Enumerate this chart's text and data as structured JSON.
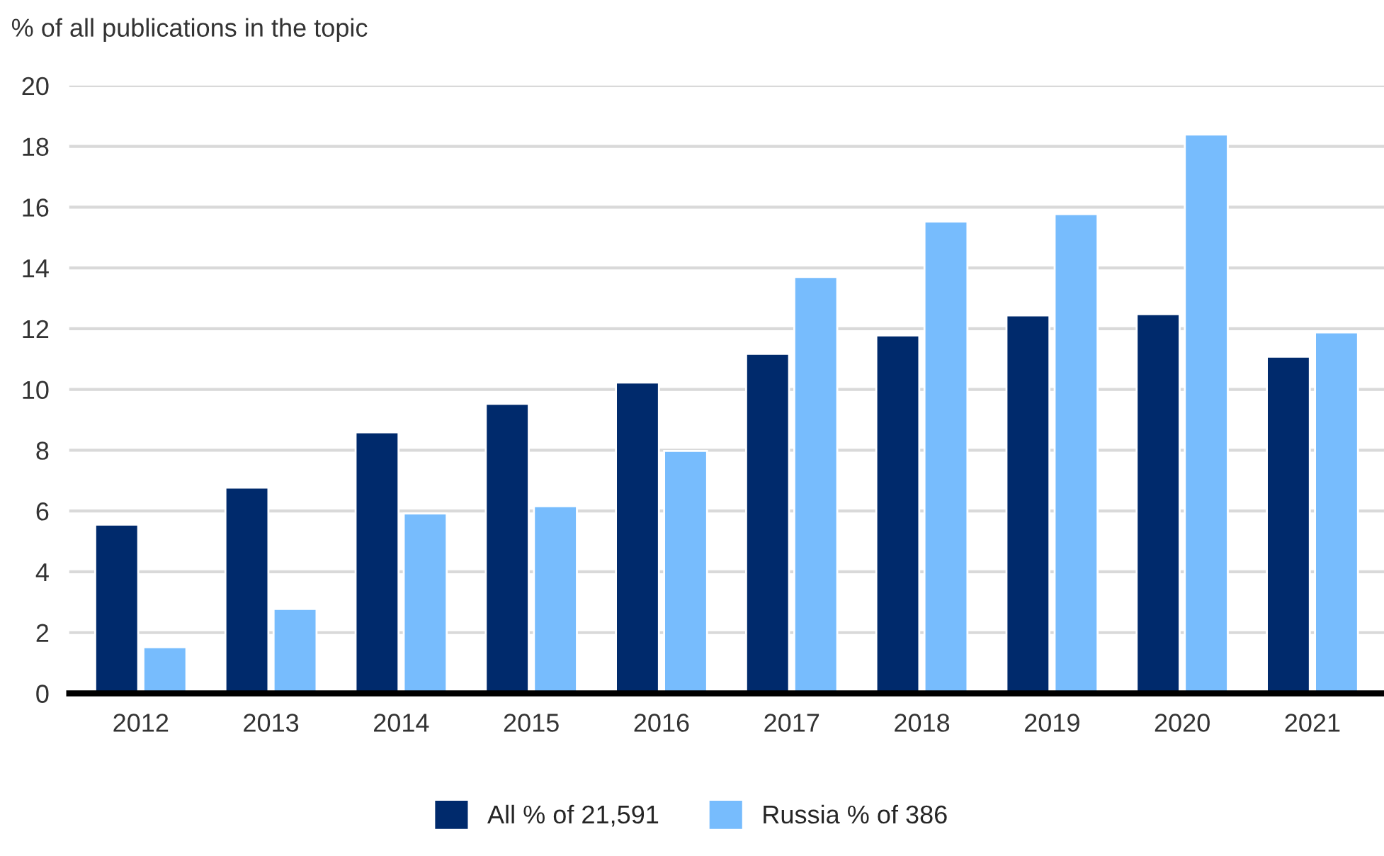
{
  "chart_data": {
    "type": "bar",
    "ylabel": "% of all publications in the topic",
    "categories": [
      "2012",
      "2013",
      "2014",
      "2015",
      "2016",
      "2017",
      "2018",
      "2019",
      "2020",
      "2021"
    ],
    "series": [
      {
        "name": "All % of 21,591",
        "color": "#002a6c",
        "values": [
          5.55,
          6.77,
          8.59,
          9.53,
          10.23,
          11.17,
          11.78,
          12.44,
          12.48,
          11.08
        ]
      },
      {
        "name": "Russia % of 386",
        "color": "#77bcfd",
        "values": [
          1.52,
          2.78,
          5.92,
          6.16,
          7.98,
          13.7,
          15.53,
          15.77,
          18.39,
          11.88
        ]
      }
    ],
    "ylim": [
      0,
      20
    ],
    "yticks": [
      0,
      2,
      4,
      6,
      8,
      10,
      12,
      14,
      16,
      18,
      20
    ],
    "grid": "y",
    "legend": "bottom"
  }
}
